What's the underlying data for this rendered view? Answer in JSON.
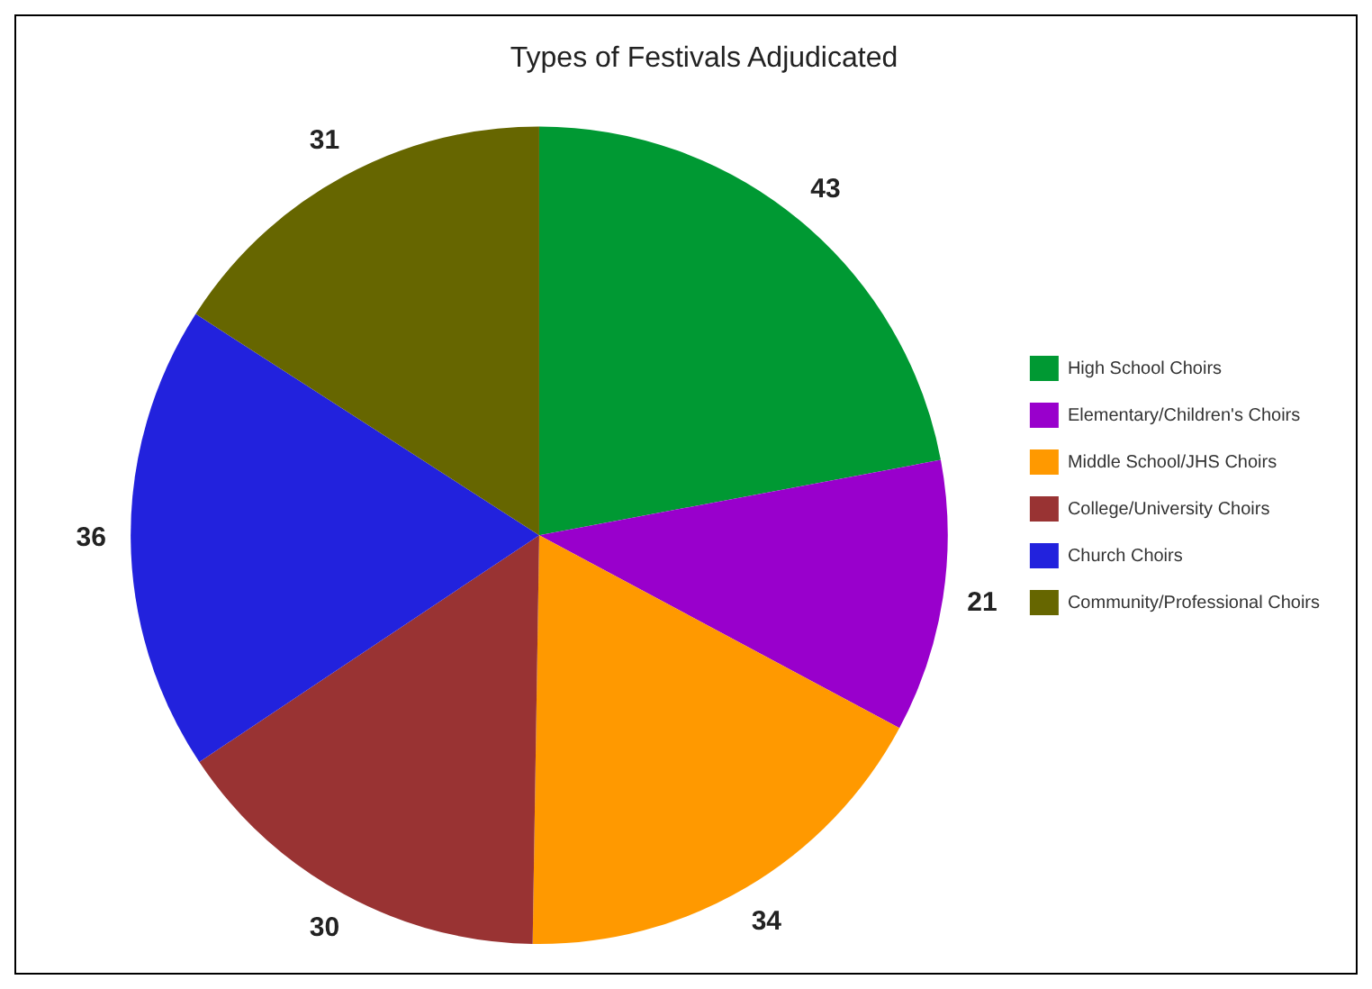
{
  "chart_data": {
    "type": "pie",
    "title": "Types of Festivals Adjudicated",
    "categories": [
      "High School Choirs",
      "Elementary/Children's Choirs",
      "Middle School/JHS Choirs",
      "College/University Choirs",
      "Church Choirs",
      "Community/Professional Choirs"
    ],
    "values": [
      43,
      21,
      34,
      30,
      36,
      31
    ],
    "colors": [
      "#009933",
      "#9900cc",
      "#ff9900",
      "#993333",
      "#2222dd",
      "#666600"
    ],
    "data_labels": true,
    "legend": "right"
  }
}
